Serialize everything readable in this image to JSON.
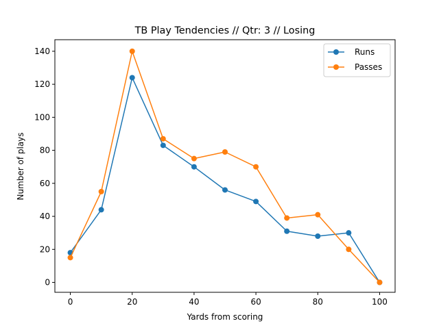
{
  "chart_data": {
    "type": "line",
    "title": "TB Play Tendencies // Qtr: 3 // Losing",
    "xlabel": "Yards from scoring",
    "ylabel": "Number of plays",
    "x": [
      0,
      10,
      20,
      30,
      40,
      50,
      60,
      70,
      80,
      90,
      100
    ],
    "xlim": [
      -5,
      105
    ],
    "ylim": [
      -6,
      147
    ],
    "xticks": [
      0,
      20,
      40,
      60,
      80,
      100
    ],
    "yticks": [
      0,
      20,
      40,
      60,
      80,
      100,
      120,
      140
    ],
    "grid": false,
    "legend_position": "top-right",
    "series": [
      {
        "name": "Runs",
        "color": "#1f77b4",
        "values": [
          18,
          44,
          124,
          83,
          70,
          56,
          49,
          31,
          28,
          30,
          0
        ]
      },
      {
        "name": "Passes",
        "color": "#ff7f0e",
        "values": [
          15,
          55,
          140,
          87,
          75,
          79,
          70,
          39,
          41,
          20,
          0
        ]
      }
    ]
  }
}
